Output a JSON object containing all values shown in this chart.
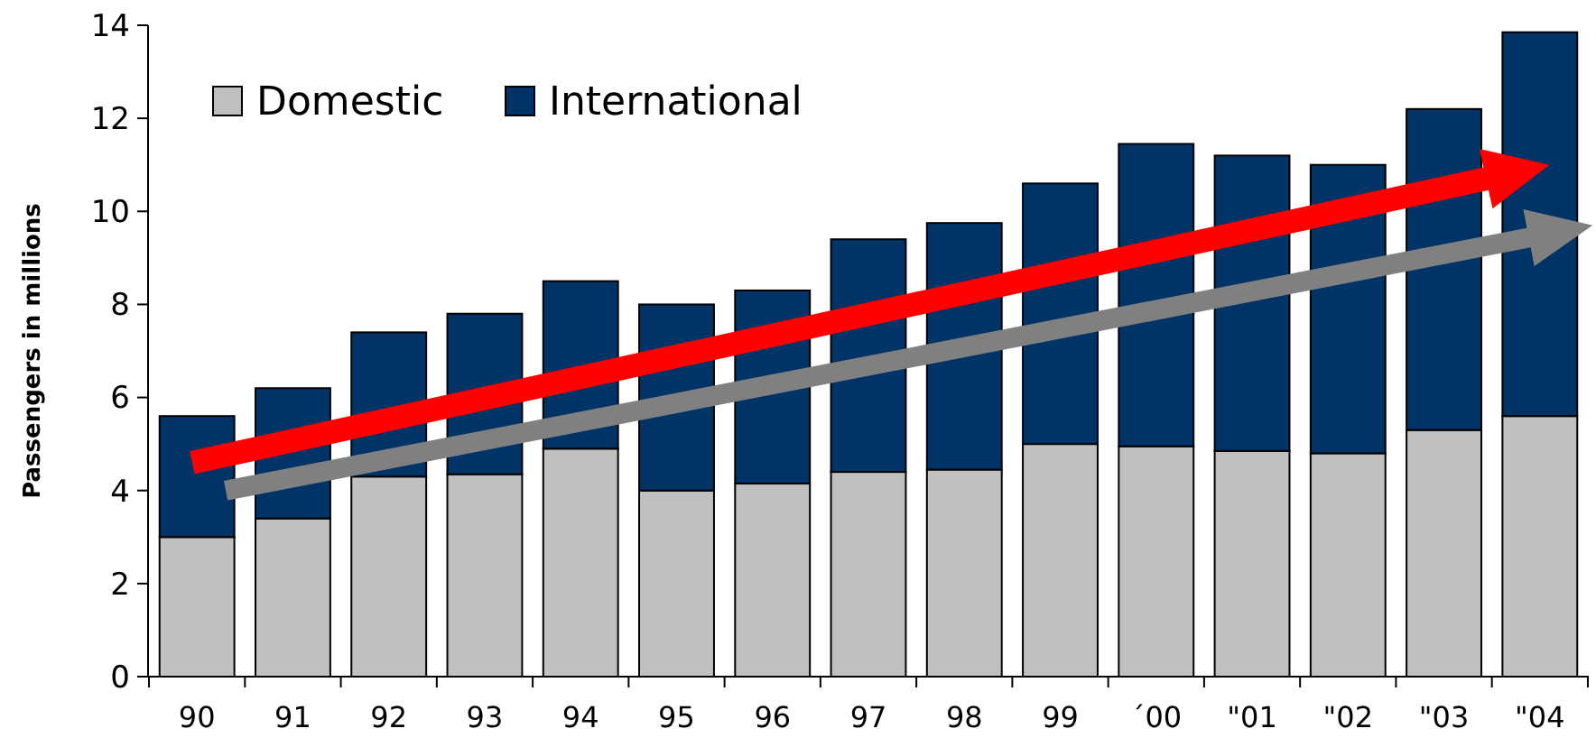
{
  "chart_data": {
    "type": "bar",
    "stacked": true,
    "ylabel": "Passengers in millions",
    "categories": [
      "90",
      "91",
      "92",
      "93",
      "94",
      "95",
      "96",
      "97",
      "98",
      "99",
      "´00",
      "\"01",
      "\"02",
      "\"03",
      "\"04"
    ],
    "series": [
      {
        "name": "Domestic",
        "color": "#c0c0c0",
        "values": [
          3.0,
          3.4,
          4.3,
          4.35,
          4.9,
          4.0,
          4.15,
          4.4,
          4.45,
          5.0,
          4.95,
          4.85,
          4.8,
          5.3,
          5.6
        ]
      },
      {
        "name": "International",
        "color": "#003366",
        "values": [
          2.6,
          2.8,
          3.1,
          3.45,
          3.6,
          4.0,
          4.15,
          5.0,
          5.3,
          5.6,
          6.5,
          6.35,
          6.2,
          6.9,
          8.25
        ]
      }
    ],
    "ylim": [
      0,
      14
    ],
    "yticks": [
      0,
      2,
      4,
      6,
      8,
      10,
      12,
      14
    ],
    "grid": false,
    "legend": "top left"
  }
}
